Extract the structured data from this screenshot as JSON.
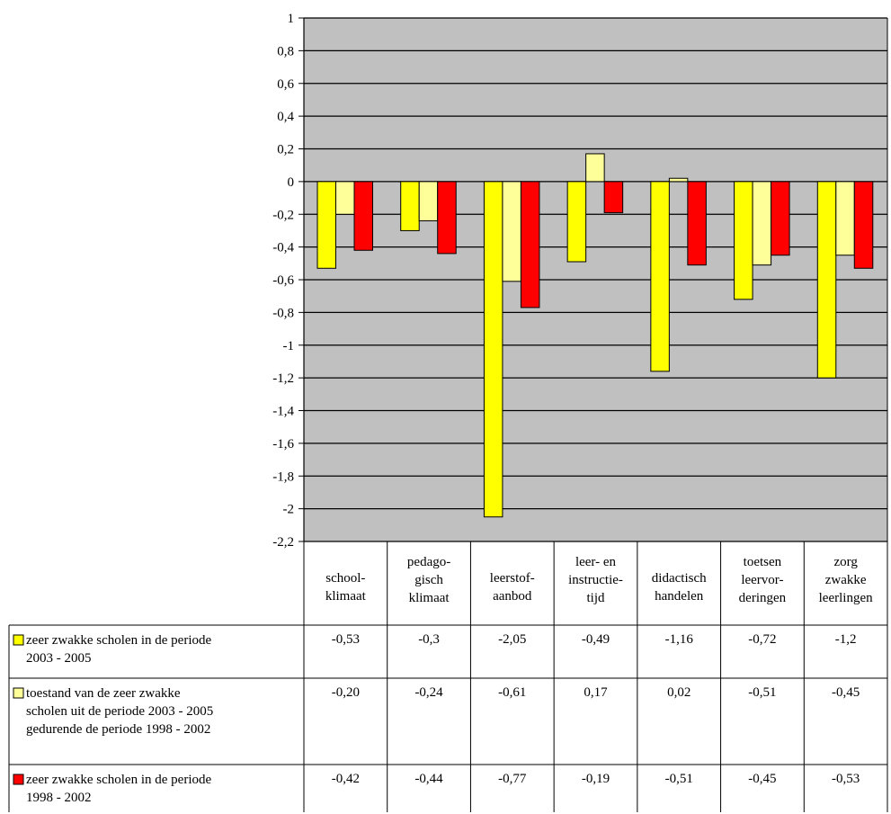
{
  "chart_data": {
    "type": "bar",
    "categories": [
      [
        "school-",
        "klimaat"
      ],
      [
        "pedago-",
        "gisch",
        "klimaat"
      ],
      [
        "leerstof-",
        "aanbod"
      ],
      [
        "leer- en",
        "instructie-",
        "tijd"
      ],
      [
        "didactisch",
        "handelen"
      ],
      [
        "toetsen",
        "leervor-",
        "deringen"
      ],
      [
        "zorg",
        "zwakke",
        "leerlingen"
      ]
    ],
    "ylim": [
      -2.2,
      1
    ],
    "ytick_step": 0.2,
    "ytick_labels": [
      "1",
      "0,8",
      "0,6",
      "0,4",
      "0,2",
      "0",
      "-0,2",
      "-0,4",
      "-0,6",
      "-0,8",
      "-1",
      "-1,2",
      "-1,4",
      "-1,6",
      "-1,8",
      "-2",
      "-2,2"
    ],
    "grid": true,
    "plot_background": "#c0c0c0",
    "legend_placement": "data-table-left",
    "series": [
      {
        "name": [
          "zeer zwakke scholen in de periode",
          "2003 - 2005"
        ],
        "color": "#ffff00",
        "values": [
          -0.53,
          -0.3,
          -2.05,
          -0.49,
          -1.16,
          -0.72,
          -1.2
        ],
        "labels": [
          "-0,53",
          "-0,3",
          "-2,05",
          "-0,49",
          "-1,16",
          "-0,72",
          "-1,2"
        ]
      },
      {
        "name": [
          "toestand van de zeer zwakke",
          "scholen uit de periode 2003 - 2005",
          "gedurende de periode 1998 - 2002"
        ],
        "color": "#ffff99",
        "values": [
          -0.2,
          -0.24,
          -0.61,
          0.17,
          0.02,
          -0.51,
          -0.45
        ],
        "labels": [
          "-0,20",
          "-0,24",
          "-0,61",
          "0,17",
          "0,02",
          "-0,51",
          "-0,45"
        ]
      },
      {
        "name": [
          "zeer zwakke scholen in de periode",
          "1998 - 2002"
        ],
        "color": "#ff0000",
        "values": [
          -0.42,
          -0.44,
          -0.77,
          -0.19,
          -0.51,
          -0.45,
          -0.53
        ],
        "labels": [
          "-0,42",
          "-0,44",
          "-0,77",
          "-0,19",
          "-0,51",
          "-0,45",
          "-0,53"
        ]
      }
    ]
  }
}
